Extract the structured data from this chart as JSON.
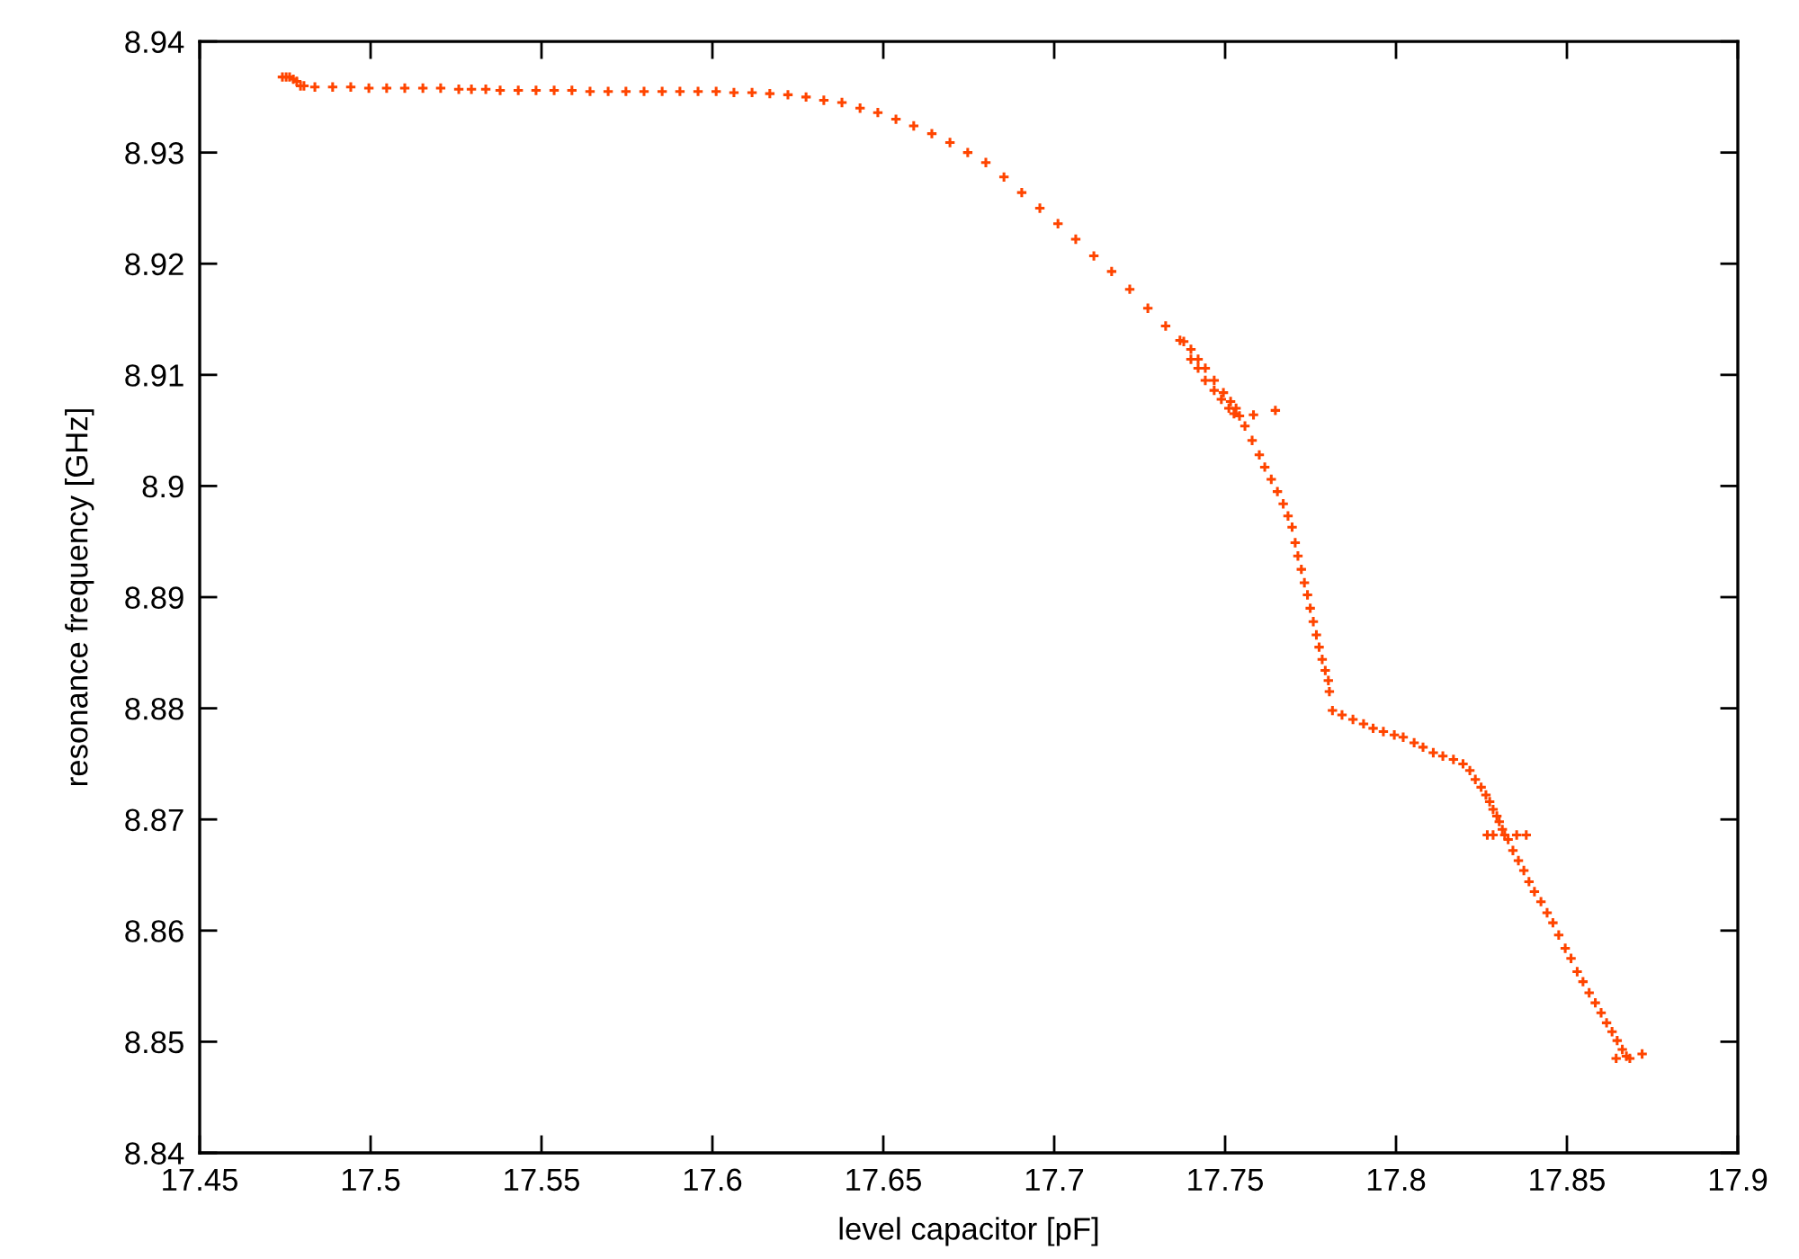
{
  "chart_data": {
    "type": "scatter",
    "xlabel": "level capacitor [pF]",
    "ylabel": "resonance frequency [GHz]",
    "marker": "cross",
    "xlim": [
      17.45,
      17.9
    ],
    "xticks": [
      17.45,
      17.5,
      17.55,
      17.6,
      17.65,
      17.7,
      17.75,
      17.8,
      17.85,
      17.9
    ],
    "ylim": [
      8.84,
      8.94
    ],
    "yticks": [
      8.84,
      8.85,
      8.86,
      8.87,
      8.88,
      8.89,
      8.9,
      8.91,
      8.92,
      8.93,
      8.94
    ],
    "series": [
      {
        "color": "#ff4500",
        "x": [
          17.4742,
          17.4753,
          17.4763,
          17.4774,
          17.4784,
          17.4795,
          17.4805,
          17.4837,
          17.4889,
          17.4942,
          17.4995,
          17.5047,
          17.51,
          17.5153,
          17.5205,
          17.5258,
          17.5295,
          17.5337,
          17.5379,
          17.5432,
          17.5484,
          17.5537,
          17.5589,
          17.5642,
          17.5695,
          17.5747,
          17.58,
          17.5853,
          17.5905,
          17.5958,
          17.6011,
          17.6063,
          17.6116,
          17.6168,
          17.6221,
          17.6274,
          17.6326,
          17.6379,
          17.6432,
          17.6484,
          17.6537,
          17.6589,
          17.6642,
          17.6695,
          17.6747,
          17.68,
          17.6853,
          17.6905,
          17.6958,
          17.7011,
          17.7063,
          17.7116,
          17.7168,
          17.7221,
          17.7274,
          17.7326,
          17.7368,
          17.7379,
          17.74,
          17.7421,
          17.7442,
          17.7468,
          17.7495,
          17.7516,
          17.7532,
          17.7542,
          17.74,
          17.7421,
          17.7442,
          17.7468,
          17.7489,
          17.7511,
          17.7526,
          17.7583,
          17.7647,
          17.7558,
          17.7579,
          17.76,
          17.7616,
          17.7635,
          17.7653,
          17.767,
          17.7684,
          17.7696,
          17.7705,
          17.7713,
          17.7723,
          17.7732,
          17.7741,
          17.7749,
          17.7758,
          17.7767,
          17.7775,
          17.7784,
          17.7793,
          17.7802,
          17.7805,
          17.7814,
          17.7842,
          17.7874,
          17.7905,
          17.7933,
          17.7963,
          17.7995,
          17.8021,
          17.8053,
          17.8079,
          17.8109,
          17.8137,
          17.8168,
          17.8196,
          17.8216,
          17.8232,
          17.8249,
          17.8263,
          17.8274,
          17.8284,
          17.8295,
          17.8302,
          17.8311,
          17.8318,
          17.8267,
          17.8284,
          17.8353,
          17.8381,
          17.8328,
          17.8342,
          17.8358,
          17.8374,
          17.8389,
          17.8405,
          17.8424,
          17.8442,
          17.8459,
          17.8476,
          17.8495,
          17.8512,
          17.853,
          17.8547,
          17.8565,
          17.8583,
          17.86,
          17.8616,
          17.8632,
          17.8647,
          17.8662,
          17.8674,
          17.8684,
          17.8644,
          17.872
        ],
        "values": [
          8.9368,
          8.9368,
          8.9368,
          8.9366,
          8.9364,
          8.936,
          8.936,
          8.9359,
          8.9359,
          8.9359,
          8.9358,
          8.9358,
          8.9358,
          8.9358,
          8.9358,
          8.9357,
          8.9357,
          8.9357,
          8.9356,
          8.9356,
          8.9356,
          8.9356,
          8.9356,
          8.9355,
          8.9355,
          8.9355,
          8.9355,
          8.9355,
          8.9355,
          8.9355,
          8.9355,
          8.9354,
          8.9354,
          8.9353,
          8.9352,
          8.935,
          8.9347,
          8.9345,
          8.934,
          8.9336,
          8.933,
          8.9324,
          8.9317,
          8.9309,
          8.93,
          8.9291,
          8.9278,
          8.9264,
          8.925,
          8.9236,
          8.9222,
          8.9207,
          8.9193,
          8.9177,
          8.916,
          8.9144,
          8.9131,
          8.913,
          8.9123,
          8.9114,
          8.9106,
          8.9095,
          8.9084,
          8.9076,
          8.907,
          8.9063,
          8.9114,
          8.9106,
          8.9095,
          8.9086,
          8.9078,
          8.907,
          8.9065,
          8.9064,
          8.9068,
          8.9054,
          8.9041,
          8.9028,
          8.9017,
          8.9006,
          8.8995,
          8.8984,
          8.8973,
          8.8963,
          8.8949,
          8.8937,
          8.8925,
          8.8913,
          8.8902,
          8.889,
          8.8878,
          8.8866,
          8.8855,
          8.8844,
          8.8834,
          8.8825,
          8.8815,
          8.8798,
          8.8794,
          8.879,
          8.8786,
          8.8782,
          8.8779,
          8.8776,
          8.8774,
          8.8769,
          8.8765,
          8.876,
          8.8757,
          8.8754,
          8.875,
          8.8744,
          8.8736,
          8.8729,
          8.8722,
          8.8716,
          8.8709,
          8.8703,
          8.8698,
          8.8691,
          8.8686,
          8.8686,
          8.8686,
          8.8686,
          8.8686,
          8.8682,
          8.8672,
          8.8663,
          8.8654,
          8.8644,
          8.8635,
          8.8626,
          8.8616,
          8.8607,
          8.8596,
          8.8584,
          8.8575,
          8.8563,
          8.8554,
          8.8544,
          8.8535,
          8.8526,
          8.8517,
          8.8509,
          8.8501,
          8.8493,
          8.8487,
          8.8485,
          8.8485,
          8.8489
        ]
      }
    ]
  }
}
